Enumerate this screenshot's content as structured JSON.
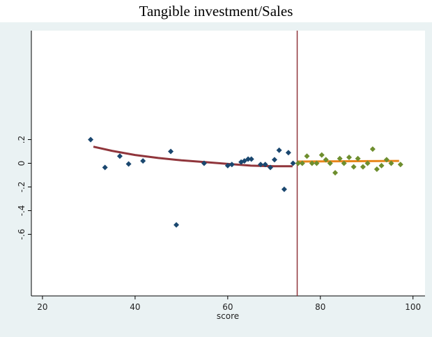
{
  "chart_data": {
    "type": "scatter",
    "title": "Tangible investment/Sales",
    "x_label": "score",
    "xlim": [
      17.6,
      102.6
    ],
    "ylim": [
      -1.12,
      1.12
    ],
    "xticks": [
      20,
      40,
      60,
      80,
      100
    ],
    "yticks": [
      {
        "value": 0.2,
        "label": ".2"
      },
      0,
      {
        "value": -0.2,
        "label": "-.2"
      },
      {
        "value": -0.4,
        "label": "-.4"
      },
      {
        "value": -0.6,
        "label": "-.6"
      }
    ],
    "cutoff": 75,
    "cutoff_color": "#90353b",
    "series": [
      {
        "type": "scatter",
        "color": "#1a476f",
        "x": [
          30.4,
          33.5,
          36.7,
          38.6,
          41.7,
          47.7,
          48.9,
          54.9,
          60,
          60.9,
          62.9,
          63.6,
          64.4,
          65.1,
          67.1,
          68.1,
          69.2,
          70.1,
          71.1,
          72.2,
          73.1,
          74.1
        ],
        "values": [
          0.2,
          -0.035,
          0.06,
          -0.006,
          0.02,
          0.1,
          -0.52,
          0,
          -0.02,
          -0.01,
          0.01,
          0.02,
          0.035,
          0.035,
          -0.01,
          -0.01,
          -0.035,
          0.03,
          0.11,
          -0.22,
          0.09,
          0
        ]
      },
      {
        "type": "scatter",
        "color": "#6e8e2e",
        "x": [
          75.2,
          76.1,
          77.1,
          78.2,
          79.2,
          80.3,
          81.2,
          82.1,
          83.2,
          84.2,
          85.1,
          86.2,
          87.2,
          88.1,
          89.2,
          90.2,
          91.3,
          92.2,
          93.2,
          94.3,
          95.3,
          97.3
        ],
        "values": [
          0,
          0,
          0.06,
          0,
          0,
          0.07,
          0.03,
          0,
          -0.08,
          0.04,
          0,
          0.05,
          -0.03,
          0.04,
          -0.03,
          0,
          0.12,
          -0.05,
          -0.02,
          0.03,
          0,
          -0.01
        ]
      },
      {
        "type": "line",
        "color": "#90353b",
        "x": [
          31,
          35,
          40,
          45,
          50,
          55,
          60,
          65,
          70,
          74
        ],
        "values": [
          0.14,
          0.105,
          0.07,
          0.045,
          0.025,
          0.01,
          -0.005,
          -0.02,
          -0.025,
          -0.025
        ]
      },
      {
        "type": "line",
        "color": "#e8861b",
        "x": [
          75,
          97
        ],
        "values": [
          0.015,
          0.02
        ]
      }
    ]
  }
}
